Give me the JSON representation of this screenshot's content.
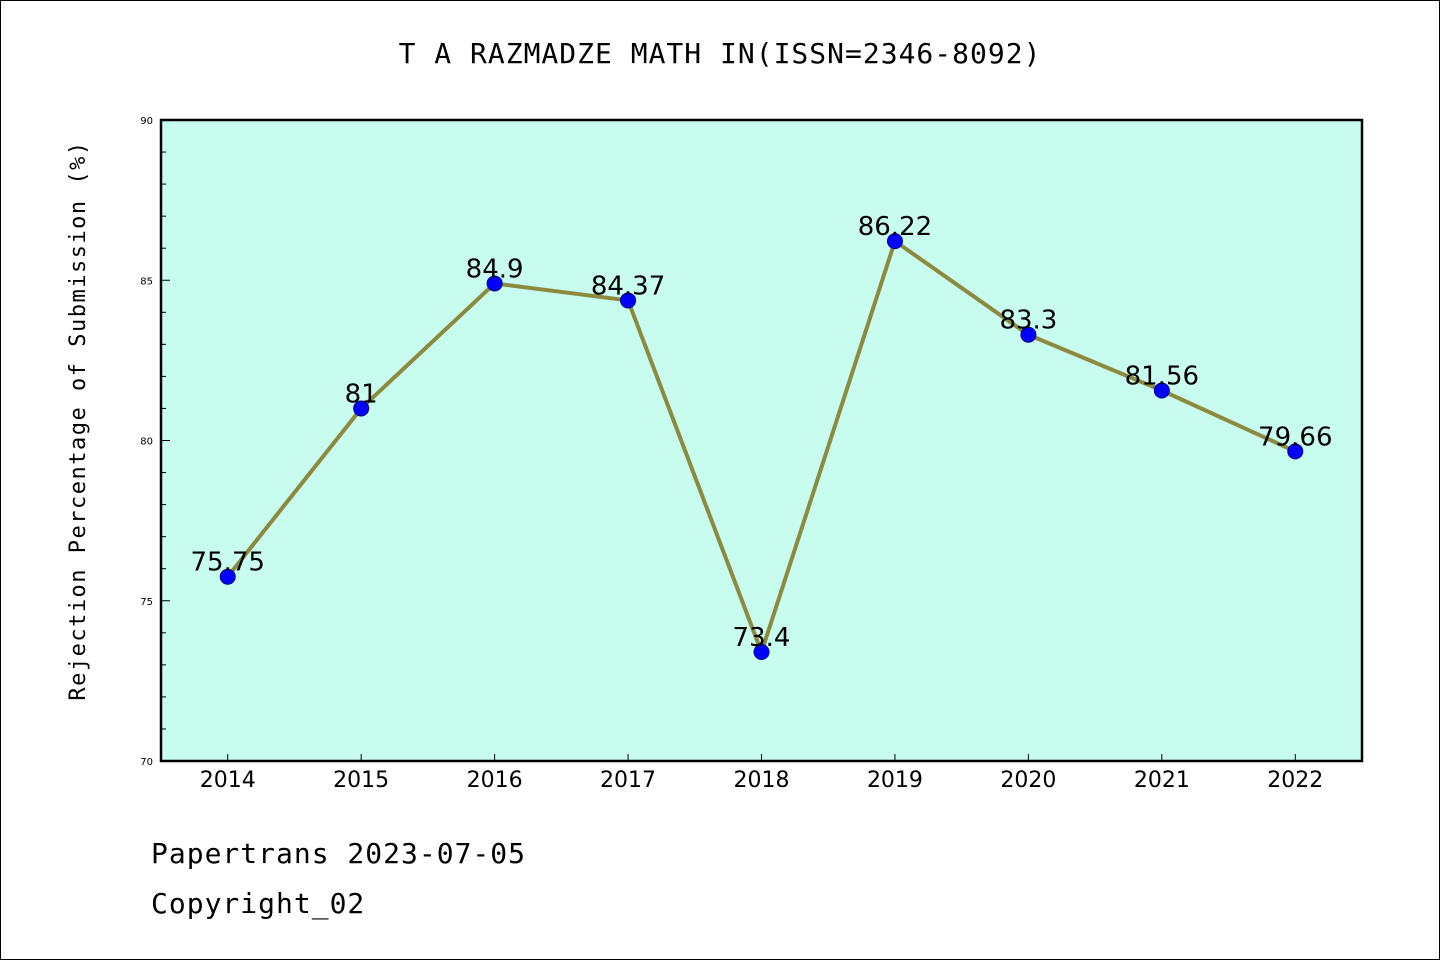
{
  "chart_data": {
    "type": "line",
    "title": "T A RAZMADZE MATH IN(ISSN=2346-8092)",
    "xlabel": "",
    "ylabel": "Rejection Percentage of Submission (%)",
    "categories": [
      "2014",
      "2015",
      "2016",
      "2017",
      "2018",
      "2019",
      "2020",
      "2021",
      "2022"
    ],
    "series": [
      {
        "values": [
          75.75,
          81,
          84.9,
          84.37,
          73.4,
          86.22,
          83.3,
          81.56,
          79.66
        ],
        "labels": [
          "75.75",
          "81",
          "84.9",
          "84.37",
          "73.4",
          "86.22",
          "83.3",
          "81.56",
          "79.66"
        ]
      }
    ],
    "ylim": [
      70,
      90
    ],
    "yticks": [
      "70",
      "75",
      "80",
      "85",
      "90"
    ],
    "grid": false,
    "legend": "none",
    "plot_background": "#c8fcee",
    "line_color": "#8b8a3e",
    "marker_color": "#0000ff"
  },
  "footer": {
    "line1": "Papertrans 2023-07-05",
    "line2": "Copyright_02"
  }
}
